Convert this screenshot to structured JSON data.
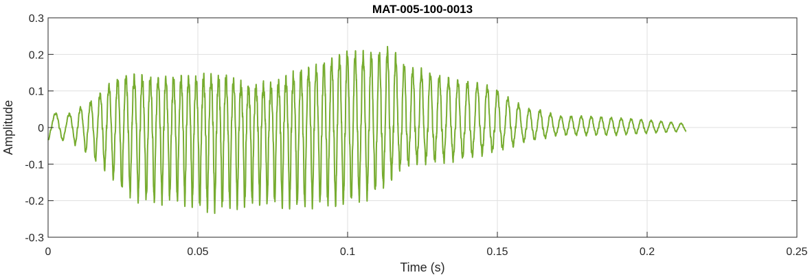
{
  "chart_data": {
    "type": "line",
    "title": "MAT-005-100-0013",
    "xlabel": "Time (s)",
    "ylabel": "Amplitude",
    "xlim": [
      0,
      0.25
    ],
    "ylim": [
      -0.3,
      0.3
    ],
    "grid": true,
    "line_color": "#77AC30",
    "grid_color": "#DFDFDF",
    "axis_color": "#262626",
    "x_ticks": [
      0,
      0.05,
      0.1,
      0.15,
      0.2,
      0.25
    ],
    "x_tick_labels": [
      "0",
      "0.05",
      "0.1",
      "0.15",
      "0.2",
      "0.25"
    ],
    "y_ticks": [
      0.3,
      0.2,
      0.1,
      0,
      -0.1,
      -0.2,
      -0.3
    ],
    "y_tick_labels": [
      "0.3",
      "0.2",
      "0.1",
      "0",
      "-0.1",
      "-0.2",
      "-0.3"
    ],
    "series": [
      {
        "signal_end_s": 0.213,
        "x": [
          0,
          0.003,
          0.005,
          0.008,
          0.01,
          0.013,
          0.016,
          0.02,
          0.025,
          0.03,
          0.035,
          0.04,
          0.045,
          0.05,
          0.055,
          0.06,
          0.065,
          0.07,
          0.075,
          0.08,
          0.085,
          0.09,
          0.095,
          0.1,
          0.105,
          0.11,
          0.113,
          0.116,
          0.12,
          0.125,
          0.13,
          0.135,
          0.14,
          0.145,
          0.15,
          0.155,
          0.16,
          0.165,
          0.17,
          0.18,
          0.19,
          0.2,
          0.213
        ],
        "envelope_pos": [
          0.03,
          0.04,
          0.03,
          0.04,
          0.05,
          0.06,
          0.08,
          0.11,
          0.135,
          0.135,
          0.13,
          0.13,
          0.13,
          0.13,
          0.135,
          0.13,
          0.11,
          0.11,
          0.11,
          0.13,
          0.15,
          0.16,
          0.18,
          0.2,
          0.195,
          0.195,
          0.21,
          0.19,
          0.16,
          0.15,
          0.14,
          0.125,
          0.12,
          0.115,
          0.1,
          0.07,
          0.05,
          0.045,
          0.03,
          0.03,
          0.025,
          0.02,
          0.01
        ],
        "envelope_neg": [
          -0.035,
          -0.03,
          -0.035,
          -0.04,
          -0.05,
          -0.07,
          -0.09,
          -0.12,
          -0.17,
          -0.19,
          -0.2,
          -0.19,
          -0.2,
          -0.21,
          -0.22,
          -0.21,
          -0.21,
          -0.2,
          -0.2,
          -0.21,
          -0.21,
          -0.2,
          -0.21,
          -0.2,
          -0.19,
          -0.17,
          -0.15,
          -0.12,
          -0.1,
          -0.09,
          -0.09,
          -0.085,
          -0.08,
          -0.07,
          -0.06,
          -0.05,
          -0.035,
          -0.03,
          -0.02,
          -0.02,
          -0.02,
          -0.015,
          -0.01
        ],
        "dominant_frequency_hz": [
          200,
          200,
          220,
          250,
          280,
          300,
          320,
          340,
          360,
          370,
          380,
          390,
          400,
          400,
          400,
          400,
          400,
          400,
          400,
          400,
          395,
          390,
          385,
          380,
          375,
          370,
          365,
          360,
          350,
          340,
          330,
          320,
          310,
          300,
          290,
          280,
          280,
          280,
          290,
          300,
          300,
          300,
          300
        ]
      }
    ]
  }
}
